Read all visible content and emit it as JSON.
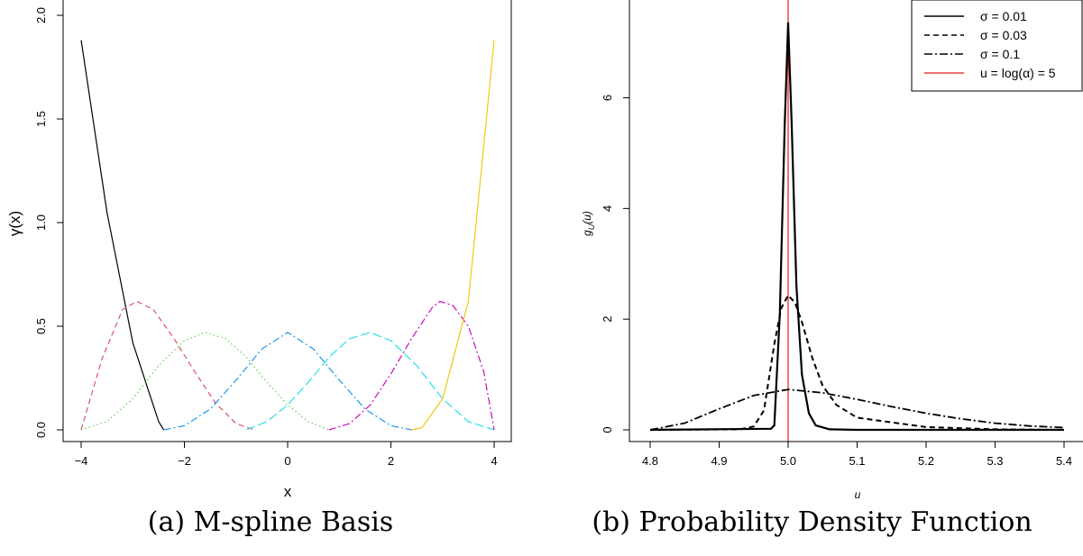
{
  "chart_data": [
    {
      "type": "line",
      "caption": "(a) M-spline Basis",
      "xlabel": "x",
      "ylabel": "γ(x)",
      "xlim": [
        -4,
        4
      ],
      "ylim": [
        0,
        2
      ],
      "xticks": [
        -4,
        -2,
        0,
        2,
        4
      ],
      "xtick_labels": [
        "−4",
        "−2",
        "0",
        "2",
        "4"
      ],
      "yticks": [
        0,
        0.5,
        1,
        1.5,
        2
      ],
      "ytick_labels": [
        "0.0",
        "0.5",
        "1.0",
        "1.5",
        "2.0"
      ],
      "grid": false,
      "series": [
        {
          "color": "#000000",
          "dash": "",
          "x": [
            -4,
            -3.5,
            -3,
            -2.5,
            -2.4
          ],
          "y": [
            1.88,
            1.05,
            0.42,
            0.04,
            0.0
          ]
        },
        {
          "color": "#df536b",
          "dash": "6 4",
          "x": [
            -4,
            -3.6,
            -3.2,
            -2.92,
            -2.6,
            -2.2,
            -1.8,
            -1.4,
            -1.0,
            -0.65
          ],
          "y": [
            0.0,
            0.34,
            0.58,
            0.62,
            0.58,
            0.44,
            0.28,
            0.13,
            0.03,
            0.0
          ]
        },
        {
          "color": "#61d04f",
          "dash": "1.5 3",
          "x": [
            -4,
            -3.5,
            -3.0,
            -2.5,
            -2.0,
            -1.6,
            -1.2,
            -0.8,
            -0.4,
            0.0,
            0.4,
            0.8
          ],
          "y": [
            0.0,
            0.04,
            0.15,
            0.31,
            0.43,
            0.47,
            0.44,
            0.35,
            0.23,
            0.12,
            0.04,
            0.0
          ]
        },
        {
          "color": "#2297e6",
          "dash": "8 3 2 3",
          "x": [
            -2.4,
            -2.0,
            -1.5,
            -1.0,
            -0.5,
            0.0,
            0.5,
            1.0,
            1.5,
            2.0,
            2.4
          ],
          "y": [
            0.0,
            0.02,
            0.1,
            0.24,
            0.39,
            0.47,
            0.39,
            0.24,
            0.1,
            0.02,
            0.0
          ]
        },
        {
          "color": "#28e2e5",
          "dash": "10 4",
          "x": [
            -0.8,
            -0.4,
            0.0,
            0.4,
            0.8,
            1.2,
            1.6,
            2.0,
            2.5,
            3.0,
            3.5,
            4.0
          ],
          "y": [
            0.0,
            0.04,
            0.12,
            0.23,
            0.35,
            0.44,
            0.47,
            0.43,
            0.31,
            0.15,
            0.04,
            0.0
          ]
        },
        {
          "color": "#cd0bbc",
          "dash": "8 3 2 3",
          "x": [
            0.8,
            1.2,
            1.6,
            2.0,
            2.4,
            2.8,
            2.95,
            3.2,
            3.5,
            3.8,
            4.0
          ],
          "y": [
            0.0,
            0.03,
            0.12,
            0.27,
            0.44,
            0.59,
            0.62,
            0.6,
            0.5,
            0.28,
            0.0
          ]
        },
        {
          "color": "#f5c710",
          "dash": "",
          "x": [
            2.4,
            2.6,
            3.0,
            3.5,
            4.0
          ],
          "y": [
            0.0,
            0.01,
            0.15,
            0.62,
            1.88
          ]
        }
      ]
    },
    {
      "type": "line",
      "caption": "(b) Probability Density Function",
      "xlabel": "u",
      "ylabel": "g",
      "ylabel_sub": "U",
      "ylabel_arg": "(u)",
      "xlim": [
        4.8,
        5.4
      ],
      "ylim": [
        0,
        7.8
      ],
      "xticks": [
        4.8,
        4.9,
        5.0,
        5.1,
        5.2,
        5.3,
        5.4
      ],
      "xtick_labels": [
        "4.8",
        "4.9",
        "5.0",
        "5.1",
        "5.2",
        "5.3",
        "5.4"
      ],
      "yticks": [
        0,
        2,
        4,
        6
      ],
      "ytick_labels": [
        "0",
        "2",
        "4",
        "6"
      ],
      "grid": false,
      "legend_position": "top-right",
      "vline": {
        "x": 5.0,
        "color": "#e41a1c"
      },
      "series": [
        {
          "name": "σ = 0.01",
          "color": "#000000",
          "dash": "",
          "width": 2.2,
          "x": [
            4.8,
            4.975,
            4.98,
            4.988,
            4.995,
            5.0,
            5.005,
            5.012,
            5.02,
            5.03,
            5.04,
            5.06,
            5.1,
            5.4
          ],
          "y": [
            0.0,
            0.02,
            0.08,
            2.1,
            5.5,
            7.35,
            5.6,
            2.6,
            1.0,
            0.3,
            0.08,
            0.01,
            0.0,
            0.0
          ]
        },
        {
          "name": "σ = 0.03",
          "color": "#000000",
          "dash": "6 4",
          "width": 2.0,
          "x": [
            4.8,
            4.93,
            4.95,
            4.965,
            4.98,
            4.99,
            5.0,
            5.01,
            5.02,
            5.035,
            5.05,
            5.07,
            5.1,
            5.2,
            5.3,
            5.4
          ],
          "y": [
            0.0,
            0.01,
            0.06,
            0.35,
            1.55,
            2.2,
            2.43,
            2.3,
            1.95,
            1.3,
            0.8,
            0.45,
            0.22,
            0.05,
            0.01,
            0.0
          ]
        },
        {
          "name": "σ = 0.1",
          "color": "#000000",
          "dash": "9 3 2 3",
          "width": 1.8,
          "x": [
            4.8,
            4.85,
            4.9,
            4.95,
            5.0,
            5.05,
            5.1,
            5.15,
            5.2,
            5.25,
            5.3,
            5.35,
            5.4
          ],
          "y": [
            0.0,
            0.12,
            0.38,
            0.62,
            0.73,
            0.67,
            0.55,
            0.42,
            0.3,
            0.2,
            0.12,
            0.07,
            0.04
          ]
        },
        {
          "name": "u = log(α) = 5",
          "color": "#e41a1c",
          "dash": "",
          "width": 1.2,
          "legend_only": true
        }
      ]
    }
  ]
}
